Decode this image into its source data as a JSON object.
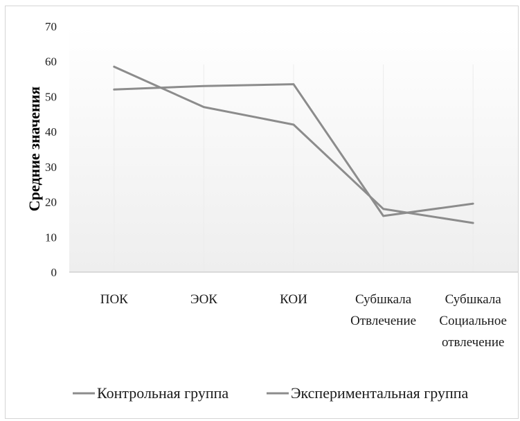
{
  "chart_data": {
    "type": "line",
    "title": "",
    "xlabel": "",
    "ylabel": "Средние значения",
    "ylim": [
      0,
      70
    ],
    "yticks": [
      0,
      10,
      20,
      30,
      40,
      50,
      60,
      70
    ],
    "categories": [
      [
        "ПОК"
      ],
      [
        "ЭОК"
      ],
      [
        "КОИ"
      ],
      [
        "Субшкала",
        "Отвлечение"
      ],
      [
        "Субшкала",
        "Социальное",
        "отвлечение"
      ]
    ],
    "series": [
      {
        "name": "Контрольная группа",
        "color": "#8c8c8c",
        "values": [
          52,
          53,
          53.5,
          16,
          19.5
        ]
      },
      {
        "name": "Экспериментальная группа",
        "color": "#8c8c8c",
        "values": [
          58.5,
          47,
          42,
          18,
          14
        ]
      }
    ],
    "grid": false,
    "legend_position": "bottom"
  }
}
